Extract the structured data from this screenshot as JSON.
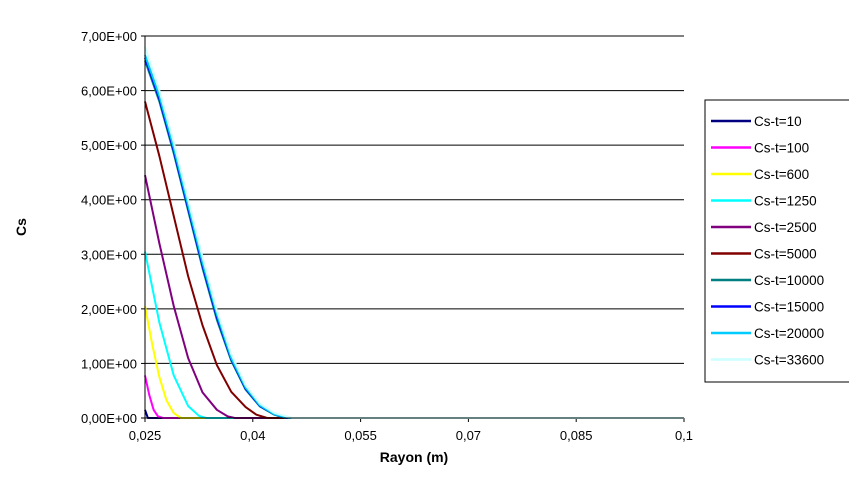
{
  "chart_data": {
    "type": "line",
    "title": "",
    "xlabel": "Rayon (m)",
    "ylabel": "Cs",
    "xlim": [
      0.025,
      0.1
    ],
    "ylim": [
      0,
      7
    ],
    "x_ticks": [
      "0,025",
      "0,04",
      "0,055",
      "0,07",
      "0,085",
      "0,1"
    ],
    "y_ticks": [
      "0,00E+00",
      "1,00E+00",
      "2,00E+00",
      "3,00E+00",
      "4,00E+00",
      "5,00E+00",
      "6,00E+00",
      "7,00E+00"
    ],
    "grid": "horizontal",
    "legend_position": "right",
    "series": [
      {
        "name": "Cs-t=10",
        "color": "#000080",
        "points": [
          [
            0.025,
            0.15
          ],
          [
            0.0254,
            0.0
          ]
        ]
      },
      {
        "name": "Cs-t=100",
        "color": "#ff00ff",
        "points": [
          [
            0.025,
            0.78
          ],
          [
            0.0256,
            0.42
          ],
          [
            0.0262,
            0.15
          ],
          [
            0.0268,
            0.03
          ],
          [
            0.0275,
            0.0
          ]
        ]
      },
      {
        "name": "Cs-t=600",
        "color": "#ffff00",
        "points": [
          [
            0.025,
            2.05
          ],
          [
            0.026,
            1.35
          ],
          [
            0.027,
            0.75
          ],
          [
            0.028,
            0.32
          ],
          [
            0.029,
            0.09
          ],
          [
            0.03,
            0.0
          ]
        ]
      },
      {
        "name": "Cs-t=1250",
        "color": "#00ffff",
        "points": [
          [
            0.025,
            3.05
          ],
          [
            0.027,
            1.75
          ],
          [
            0.029,
            0.78
          ],
          [
            0.031,
            0.22
          ],
          [
            0.0325,
            0.04
          ],
          [
            0.0335,
            0.0
          ]
        ]
      },
      {
        "name": "Cs-t=2500",
        "color": "#800080",
        "points": [
          [
            0.025,
            4.45
          ],
          [
            0.027,
            3.2
          ],
          [
            0.029,
            2.05
          ],
          [
            0.031,
            1.1
          ],
          [
            0.033,
            0.47
          ],
          [
            0.035,
            0.15
          ],
          [
            0.0365,
            0.03
          ],
          [
            0.0375,
            0.0
          ]
        ]
      },
      {
        "name": "Cs-t=5000",
        "color": "#800000",
        "points": [
          [
            0.025,
            5.8
          ],
          [
            0.027,
            4.8
          ],
          [
            0.029,
            3.7
          ],
          [
            0.031,
            2.6
          ],
          [
            0.033,
            1.7
          ],
          [
            0.035,
            0.97
          ],
          [
            0.037,
            0.48
          ],
          [
            0.039,
            0.2
          ],
          [
            0.0405,
            0.06
          ],
          [
            0.042,
            0.0
          ]
        ]
      },
      {
        "name": "Cs-t=10000",
        "color": "#008080",
        "points": [
          [
            0.025,
            6.55
          ],
          [
            0.027,
            5.8
          ],
          [
            0.029,
            4.85
          ],
          [
            0.031,
            3.8
          ],
          [
            0.033,
            2.75
          ],
          [
            0.035,
            1.8
          ],
          [
            0.037,
            1.05
          ],
          [
            0.039,
            0.52
          ],
          [
            0.041,
            0.21
          ],
          [
            0.043,
            0.06
          ],
          [
            0.0445,
            0.0
          ]
        ]
      },
      {
        "name": "Cs-t=15000",
        "color": "#0000ff",
        "points": [
          [
            0.025,
            6.6
          ],
          [
            0.027,
            5.85
          ],
          [
            0.029,
            4.9
          ],
          [
            0.031,
            3.85
          ],
          [
            0.033,
            2.8
          ],
          [
            0.035,
            1.85
          ],
          [
            0.037,
            1.08
          ],
          [
            0.039,
            0.54
          ],
          [
            0.041,
            0.22
          ],
          [
            0.043,
            0.07
          ],
          [
            0.0448,
            0.0
          ]
        ]
      },
      {
        "name": "Cs-t=20000",
        "color": "#00ccff",
        "points": [
          [
            0.025,
            6.65
          ],
          [
            0.027,
            5.9
          ],
          [
            0.029,
            4.95
          ],
          [
            0.031,
            3.9
          ],
          [
            0.033,
            2.85
          ],
          [
            0.035,
            1.9
          ],
          [
            0.037,
            1.1
          ],
          [
            0.039,
            0.56
          ],
          [
            0.041,
            0.23
          ],
          [
            0.043,
            0.07
          ],
          [
            0.045,
            0.0
          ]
        ]
      },
      {
        "name": "Cs-t=33600",
        "color": "#ccffff",
        "points": [
          [
            0.025,
            6.8
          ],
          [
            0.027,
            6.0
          ],
          [
            0.029,
            5.05
          ],
          [
            0.031,
            4.0
          ],
          [
            0.033,
            2.95
          ],
          [
            0.035,
            1.97
          ],
          [
            0.037,
            1.17
          ],
          [
            0.039,
            0.6
          ],
          [
            0.041,
            0.26
          ],
          [
            0.043,
            0.09
          ],
          [
            0.0455,
            0.0
          ]
        ]
      }
    ]
  }
}
